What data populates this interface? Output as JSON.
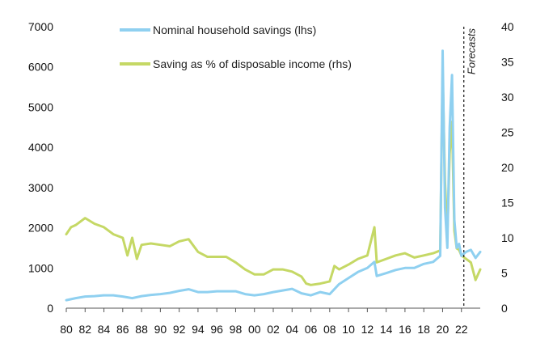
{
  "chart_data": {
    "type": "line",
    "title": "",
    "xlabel": "",
    "ylabel_left": "",
    "ylabel_right": "",
    "x_ticks": [
      "80",
      "82",
      "84",
      "86",
      "88",
      "90",
      "92",
      "94",
      "96",
      "98",
      "00",
      "02",
      "04",
      "06",
      "08",
      "10",
      "12",
      "14",
      "16",
      "18",
      "20",
      "22"
    ],
    "x_range": [
      1980,
      2024
    ],
    "ylim_left": [
      0,
      7000
    ],
    "yticks_left": [
      "0",
      "1000",
      "2000",
      "3000",
      "4000",
      "5000",
      "6000",
      "7000"
    ],
    "ylim_right": [
      0,
      40
    ],
    "yticks_right": [
      "0",
      "5",
      "10",
      "15",
      "20",
      "25",
      "30",
      "35",
      "40"
    ],
    "grid": false,
    "legend_position": "top-center",
    "forecast_start": 2022.0,
    "forecast_label": "Forecasts",
    "series": [
      {
        "name": "Nominal household savings (lhs)",
        "axis": "left",
        "color": "#8fd0f0",
        "x": [
          1980,
          1981,
          1982,
          1983,
          1984,
          1985,
          1986,
          1987,
          1988,
          1989,
          1990,
          1991,
          1992,
          1993,
          1994,
          1995,
          1996,
          1997,
          1998,
          1999,
          2000,
          2001,
          2002,
          2003,
          2004,
          2005,
          2006,
          2007,
          2008,
          2009,
          2010,
          2011,
          2012,
          2012.75,
          2013,
          2014,
          2015,
          2016,
          2017,
          2018,
          2019,
          2019.75,
          2020.0,
          2020.25,
          2020.5,
          2020.75,
          2021.0,
          2021.25,
          2021.5,
          2021.75,
          2022.0,
          2022.5,
          2023.0,
          2023.5,
          2024.0
        ],
        "values": [
          200,
          250,
          290,
          300,
          320,
          320,
          290,
          250,
          300,
          330,
          350,
          380,
          430,
          470,
          400,
          400,
          420,
          420,
          420,
          350,
          320,
          350,
          400,
          440,
          480,
          370,
          320,
          400,
          350,
          600,
          750,
          900,
          1000,
          1150,
          800,
          870,
          950,
          1000,
          1000,
          1100,
          1150,
          1300,
          6400,
          2500,
          1500,
          4500,
          5800,
          2200,
          1500,
          1600,
          1300,
          1400,
          1450,
          1250,
          1400
        ]
      },
      {
        "name": "Saving as % of disposable income (rhs)",
        "axis": "right",
        "color": "#c5d865",
        "x": [
          1980,
          1980.5,
          1981,
          1982,
          1983,
          1984,
          1985,
          1986,
          1986.5,
          1987,
          1987.5,
          1988,
          1989,
          1990,
          1991,
          1992,
          1993,
          1994,
          1995,
          1996,
          1997,
          1998,
          1999,
          2000,
          2001,
          2002,
          2003,
          2004,
          2005,
          2005.5,
          2006,
          2007,
          2008,
          2008.5,
          2009,
          2010,
          2011,
          2012,
          2012.75,
          2013,
          2014,
          2015,
          2016,
          2017,
          2018,
          2019,
          2019.75,
          2020.0,
          2020.25,
          2020.5,
          2020.75,
          2021.0,
          2021.25,
          2021.5,
          2021.75,
          2022.0,
          2022.5,
          2023.0,
          2023.5,
          2024.0
        ],
        "values": [
          10.5,
          11.5,
          11.8,
          12.8,
          12,
          11.5,
          10.5,
          10,
          7.5,
          10,
          7,
          9,
          9.2,
          9,
          8.8,
          9.5,
          9.8,
          8,
          7.3,
          7.3,
          7.3,
          6.5,
          5.5,
          4.8,
          4.8,
          5.5,
          5.5,
          5.2,
          4.5,
          3.5,
          3.3,
          3.5,
          3.8,
          6,
          5.5,
          6.2,
          7,
          7.5,
          11.5,
          6.5,
          7,
          7.5,
          7.8,
          7.2,
          7.5,
          7.8,
          8.2,
          33.5,
          18,
          10.5,
          22,
          26.5,
          11,
          8.5,
          8.3,
          7.5,
          7,
          6.5,
          4,
          5.5
        ]
      }
    ]
  }
}
